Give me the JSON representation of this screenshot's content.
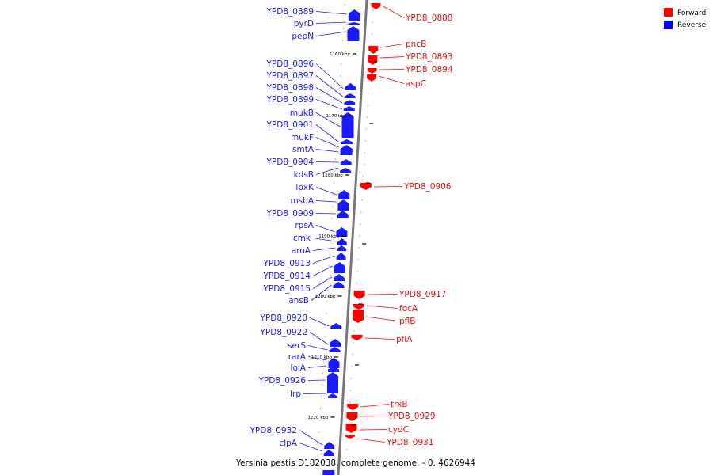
{
  "caption": "Yersinia pestis D182038, complete genome. - 0..4626944",
  "legend": [
    {
      "label": "Forward",
      "color": "#ff0000"
    },
    {
      "label": "Reverse",
      "color": "#0000ff"
    }
  ],
  "colors": {
    "forward": "#ff0000",
    "reverse": "#1a1aff",
    "axis": "#777777"
  },
  "scale_marks": [
    "1160 kbp",
    "1170 kbp",
    "1180 kbp",
    "1190 kbp",
    "1200 kbp",
    "1210 kbp",
    "1220 kbp"
  ],
  "reverse_genes": [
    "YPD8_0889",
    "pyrD",
    "pepN",
    "YPD8_0896",
    "YPD8_0897",
    "YPD8_0898",
    "YPD8_0899",
    "mukB",
    "YPD8_0901",
    "mukF",
    "smtA",
    "YPD8_0904",
    "kdsB",
    "lpxK",
    "msbA",
    "YPD8_0909",
    "rpsA",
    "cmk",
    "aroA",
    "YPD8_0913",
    "YPD8_0914",
    "YPD8_0915",
    "ansB",
    "YPD8_0920",
    "YPD8_0922",
    "serS",
    "rarA",
    "lolA",
    "YPD8_0926",
    "lrp",
    "YPD8_0932",
    "clpA"
  ],
  "forward_genes": [
    "YPD8_0888",
    "pncB",
    "YPD8_0893",
    "YPD8_0894",
    "aspC",
    "YPD8_0906",
    "YPD8_0917",
    "focA",
    "pflB",
    "pflA",
    "trxB",
    "YPD8_0929",
    "cydC",
    "YPD8_0931"
  ]
}
